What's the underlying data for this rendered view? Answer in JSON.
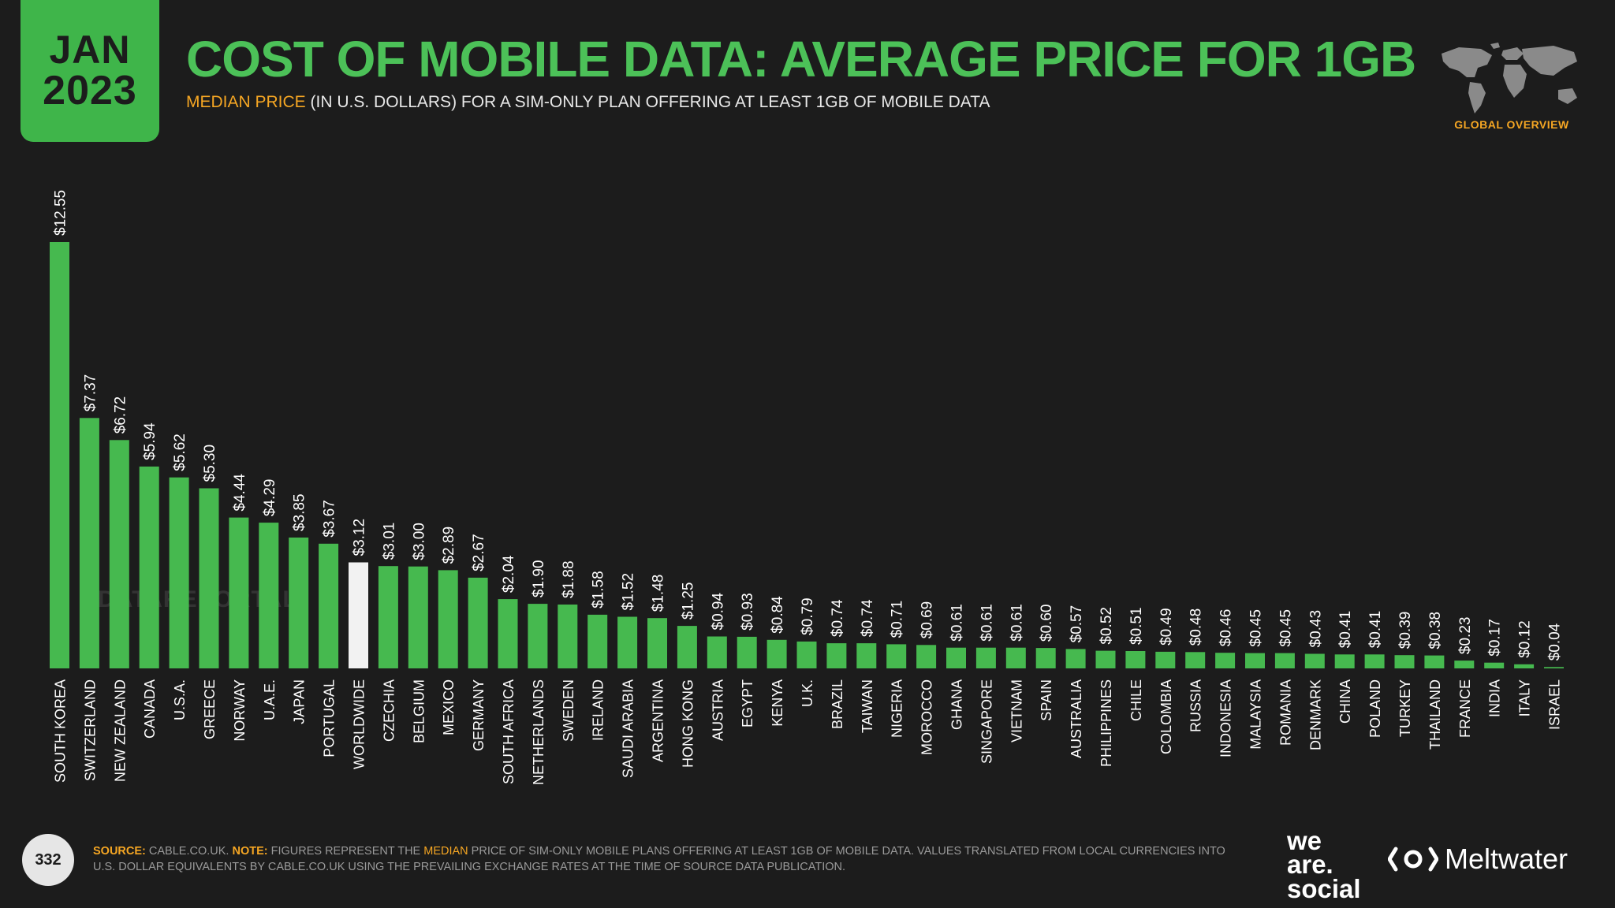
{
  "header": {
    "month": "JAN",
    "year": "2023",
    "title": "COST OF MOBILE DATA: AVERAGE PRICE FOR 1GB",
    "subtitle_highlight": "MEDIAN PRICE",
    "subtitle_rest": " (IN U.S. DOLLARS) FOR A SIM-ONLY PLAN OFFERING AT LEAST 1GB OF MOBILE DATA",
    "section_label": "GLOBAL OVERVIEW"
  },
  "watermark": "DATAREPORTAL",
  "footer": {
    "page_number": "332",
    "source_label": "SOURCE:",
    "source_text": " CABLE.CO.UK. ",
    "note_label": "NOTE:",
    "note_text_1": " FIGURES REPRESENT THE ",
    "note_highlight": "MEDIAN",
    "note_text_2": " PRICE OF SIM-ONLY MOBILE PLANS OFFERING AT LEAST 1GB OF MOBILE DATA. VALUES TRANSLATED FROM LOCAL CURRENCIES INTO U.S. DOLLAR EQUIVALENTS BY CABLE.CO.UK USING THE PREVAILING EXCHANGE RATES AT THE TIME OF SOURCE DATA PUBLICATION.",
    "brand_1_line1": "we",
    "brand_1_line2": "are.",
    "brand_1_line3": "social",
    "brand_2": "Meltwater"
  },
  "colors": {
    "bar": "#46b94f",
    "highlight_bar": "#f2f2f2",
    "accent": "#f5a623",
    "title": "#4cc158",
    "background": "#1c1c1c"
  },
  "chart_data": {
    "type": "bar",
    "ylim": [
      0,
      12.55
    ],
    "grid": false,
    "highlight_category": "WORLDWIDE",
    "categories": [
      "SOUTH KOREA",
      "SWITZERLAND",
      "NEW ZEALAND",
      "CANADA",
      "U.S.A.",
      "GREECE",
      "NORWAY",
      "U.A.E.",
      "JAPAN",
      "PORTUGAL",
      "WORLDWIDE",
      "CZECHIA",
      "BELGIUM",
      "MEXICO",
      "GERMANY",
      "SOUTH AFRICA",
      "NETHERLANDS",
      "SWEDEN",
      "IRELAND",
      "SAUDI ARABIA",
      "ARGENTINA",
      "HONG KONG",
      "AUSTRIA",
      "EGYPT",
      "KENYA",
      "U.K.",
      "BRAZIL",
      "TAIWAN",
      "NIGERIA",
      "MOROCCO",
      "GHANA",
      "SINGAPORE",
      "VIETNAM",
      "SPAIN",
      "AUSTRALIA",
      "PHILIPPINES",
      "CHILE",
      "COLOMBIA",
      "RUSSIA",
      "INDONESIA",
      "MALAYSIA",
      "ROMANIA",
      "DENMARK",
      "CHINA",
      "POLAND",
      "TURKEY",
      "THAILAND",
      "FRANCE",
      "INDIA",
      "ITALY",
      "ISRAEL"
    ],
    "values": [
      12.55,
      7.37,
      6.72,
      5.94,
      5.62,
      5.3,
      4.44,
      4.29,
      3.85,
      3.67,
      3.12,
      3.01,
      3.0,
      2.89,
      2.67,
      2.04,
      1.9,
      1.88,
      1.58,
      1.52,
      1.48,
      1.25,
      0.94,
      0.93,
      0.84,
      0.79,
      0.74,
      0.74,
      0.71,
      0.69,
      0.61,
      0.61,
      0.61,
      0.6,
      0.57,
      0.52,
      0.51,
      0.49,
      0.48,
      0.46,
      0.45,
      0.45,
      0.43,
      0.41,
      0.41,
      0.39,
      0.38,
      0.23,
      0.17,
      0.12,
      0.04
    ],
    "value_labels": [
      "$12.55",
      "$7.37",
      "$6.72",
      "$5.94",
      "$5.62",
      "$5.30",
      "$4.44",
      "$4.29",
      "$3.85",
      "$3.67",
      "$3.12",
      "$3.01",
      "$3.00",
      "$2.89",
      "$2.67",
      "$2.04",
      "$1.90",
      "$1.88",
      "$1.58",
      "$1.52",
      "$1.48",
      "$1.25",
      "$0.94",
      "$0.93",
      "$0.84",
      "$0.79",
      "$0.74",
      "$0.74",
      "$0.71",
      "$0.69",
      "$0.61",
      "$0.61",
      "$0.61",
      "$0.60",
      "$0.57",
      "$0.52",
      "$0.51",
      "$0.49",
      "$0.48",
      "$0.46",
      "$0.45",
      "$0.45",
      "$0.43",
      "$0.41",
      "$0.41",
      "$0.39",
      "$0.38",
      "$0.23",
      "$0.17",
      "$0.12",
      "$0.04"
    ]
  }
}
